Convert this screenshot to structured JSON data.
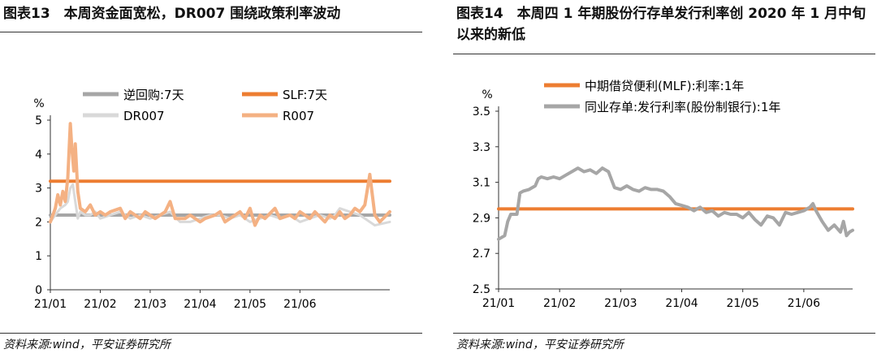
{
  "left": {
    "title": "图表13　本周资金面宽松，DR007 围绕政策利率波动",
    "source": "资料来源:wind，平安证券研究所",
    "chart_data": {
      "type": "line",
      "ylabel": "%",
      "ylim": [
        0,
        5
      ],
      "yticks": [
        "0",
        "1",
        "2",
        "3",
        "4",
        "5"
      ],
      "xlim": [
        0,
        6.8
      ],
      "xticks": [
        {
          "label": "21/01",
          "x": 0
        },
        {
          "label": "21/02",
          "x": 1
        },
        {
          "label": "21/03",
          "x": 2
        },
        {
          "label": "21/04",
          "x": 3
        },
        {
          "label": "21/05",
          "x": 4
        },
        {
          "label": "21/06",
          "x": 5
        }
      ],
      "legend": [
        {
          "name": "逆回购:7天",
          "color": "#A6A6A6"
        },
        {
          "name": "SLF:7天",
          "color": "#ED7D31"
        },
        {
          "name": "DR007",
          "color": "#D9D9D9"
        },
        {
          "name": "R007",
          "color": "#F4B183"
        }
      ],
      "series": [
        {
          "name": "逆回购:7天",
          "color": "#A6A6A6",
          "width": 4,
          "x": [
            0,
            6.8
          ],
          "y": [
            2.2,
            2.2
          ]
        },
        {
          "name": "SLF:7天",
          "color": "#ED7D31",
          "width": 4,
          "x": [
            0,
            6.8
          ],
          "y": [
            3.2,
            3.2
          ]
        },
        {
          "name": "DR007",
          "color": "#D9D9D9",
          "width": 3,
          "x": [
            0,
            0.1,
            0.2,
            0.3,
            0.35,
            0.4,
            0.45,
            0.5,
            0.55,
            0.6,
            0.7,
            0.8,
            0.9,
            1.0,
            1.2,
            1.4,
            1.6,
            1.8,
            2.0,
            2.2,
            2.4,
            2.6,
            2.8,
            3.0,
            3.2,
            3.4,
            3.6,
            3.8,
            4.0,
            4.2,
            4.4,
            4.6,
            4.8,
            5.0,
            5.2,
            5.4,
            5.6,
            5.7,
            5.8,
            6.0,
            6.2,
            6.5,
            6.8
          ],
          "y": [
            2.0,
            2.2,
            2.4,
            2.5,
            2.6,
            3.0,
            3.1,
            2.6,
            2.1,
            2.3,
            2.2,
            2.2,
            2.3,
            2.1,
            2.2,
            2.3,
            2.1,
            2.2,
            2.1,
            2.2,
            2.3,
            2.0,
            2.0,
            2.1,
            2.2,
            2.2,
            2.1,
            2.2,
            2.0,
            2.1,
            2.2,
            2.1,
            2.2,
            2.0,
            2.1,
            2.2,
            2.1,
            2.2,
            2.4,
            2.3,
            2.2,
            1.9,
            2.0
          ]
        },
        {
          "name": "R007",
          "color": "#F4B183",
          "width": 4,
          "x": [
            0,
            0.1,
            0.15,
            0.2,
            0.25,
            0.3,
            0.35,
            0.4,
            0.43,
            0.47,
            0.5,
            0.55,
            0.6,
            0.7,
            0.8,
            0.9,
            1.0,
            1.1,
            1.2,
            1.4,
            1.5,
            1.6,
            1.7,
            1.8,
            1.9,
            2.0,
            2.1,
            2.3,
            2.4,
            2.5,
            2.7,
            2.8,
            3.0,
            3.1,
            3.3,
            3.4,
            3.5,
            3.6,
            3.8,
            3.9,
            4.0,
            4.1,
            4.2,
            4.3,
            4.5,
            4.6,
            4.8,
            4.9,
            5.0,
            5.2,
            5.3,
            5.5,
            5.6,
            5.7,
            5.8,
            5.9,
            6.0,
            6.1,
            6.2,
            6.3,
            6.4,
            6.5,
            6.6,
            6.8
          ],
          "y": [
            2.0,
            2.4,
            2.8,
            2.5,
            2.9,
            2.6,
            3.3,
            4.9,
            4.2,
            3.5,
            4.3,
            2.9,
            2.4,
            2.3,
            2.5,
            2.2,
            2.3,
            2.2,
            2.3,
            2.4,
            2.1,
            2.3,
            2.2,
            2.1,
            2.3,
            2.2,
            2.1,
            2.3,
            2.6,
            2.1,
            2.1,
            2.2,
            2.0,
            2.1,
            2.2,
            2.3,
            2.0,
            2.1,
            2.3,
            2.1,
            2.4,
            1.9,
            2.2,
            2.1,
            2.4,
            2.1,
            2.2,
            2.1,
            2.3,
            2.1,
            2.3,
            2.0,
            2.2,
            2.1,
            2.3,
            2.1,
            2.2,
            2.4,
            2.3,
            2.5,
            3.4,
            2.2,
            2.0,
            2.3
          ]
        }
      ]
    }
  },
  "right": {
    "title": "图表14　本周四 1 年期股份行存单发行利率创 2020 年 1 月中旬以来的新低",
    "source": "资料来源:wind，平安证券研究所",
    "chart_data": {
      "type": "line",
      "ylabel": "%",
      "ylim": [
        2.5,
        3.5
      ],
      "yticks": [
        "2.5",
        "2.7",
        "2.9",
        "3.1",
        "3.3",
        "3.5"
      ],
      "xlim": [
        0,
        5.8
      ],
      "xticks": [
        {
          "label": "21/01",
          "x": 0
        },
        {
          "label": "21/02",
          "x": 1
        },
        {
          "label": "21/03",
          "x": 2
        },
        {
          "label": "21/04",
          "x": 3
        },
        {
          "label": "21/05",
          "x": 4
        },
        {
          "label": "21/06",
          "x": 5
        }
      ],
      "legend": [
        {
          "name": "中期借贷便利(MLF):利率:1年",
          "color": "#ED7D31"
        },
        {
          "name": "同业存单:发行利率(股份制银行):1年",
          "color": "#A6A6A6"
        }
      ],
      "series": [
        {
          "name": "中期借贷便利(MLF):利率:1年",
          "color": "#ED7D31",
          "width": 4,
          "x": [
            0,
            5.8
          ],
          "y": [
            2.95,
            2.95
          ]
        },
        {
          "name": "同业存单:发行利率(股份制银行):1年",
          "color": "#A6A6A6",
          "width": 4,
          "x": [
            0,
            0.1,
            0.15,
            0.2,
            0.3,
            0.35,
            0.4,
            0.5,
            0.6,
            0.65,
            0.7,
            0.8,
            0.9,
            1.0,
            1.1,
            1.2,
            1.3,
            1.4,
            1.5,
            1.6,
            1.7,
            1.8,
            1.9,
            2.0,
            2.1,
            2.2,
            2.3,
            2.4,
            2.5,
            2.6,
            2.7,
            2.8,
            2.9,
            3.0,
            3.1,
            3.2,
            3.3,
            3.4,
            3.5,
            3.6,
            3.7,
            3.8,
            3.9,
            4.0,
            4.1,
            4.2,
            4.3,
            4.4,
            4.5,
            4.6,
            4.7,
            4.8,
            4.9,
            5.0,
            5.1,
            5.15,
            5.2,
            5.3,
            5.4,
            5.5,
            5.6,
            5.65,
            5.7,
            5.75,
            5.8
          ],
          "y": [
            2.78,
            2.8,
            2.88,
            2.92,
            2.92,
            3.04,
            3.05,
            3.06,
            3.08,
            3.12,
            3.13,
            3.12,
            3.13,
            3.12,
            3.14,
            3.16,
            3.18,
            3.16,
            3.17,
            3.15,
            3.18,
            3.16,
            3.07,
            3.06,
            3.08,
            3.06,
            3.05,
            3.07,
            3.06,
            3.06,
            3.05,
            3.02,
            2.98,
            2.97,
            2.96,
            2.94,
            2.96,
            2.93,
            2.94,
            2.91,
            2.93,
            2.92,
            2.92,
            2.9,
            2.93,
            2.89,
            2.86,
            2.91,
            2.9,
            2.86,
            2.93,
            2.92,
            2.93,
            2.94,
            2.96,
            2.98,
            2.94,
            2.88,
            2.83,
            2.86,
            2.82,
            2.88,
            2.8,
            2.82,
            2.83
          ]
        }
      ]
    }
  }
}
